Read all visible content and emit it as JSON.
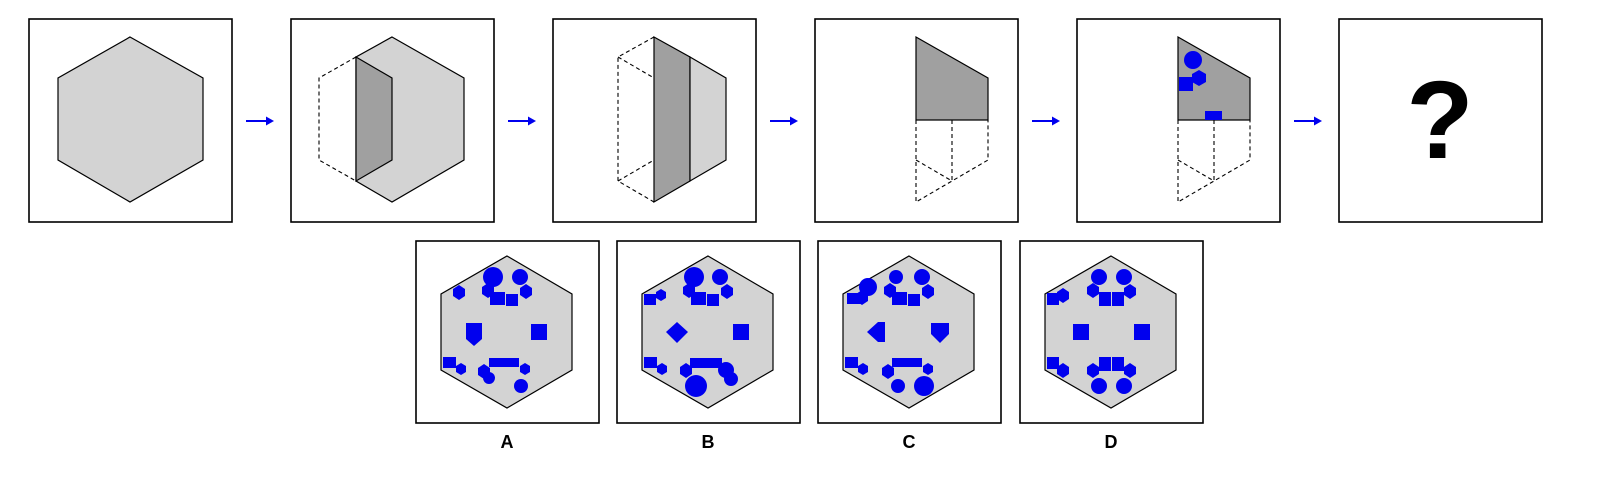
{
  "question_mark": "?",
  "options": [
    "A",
    "B",
    "C",
    "D"
  ],
  "colors": {
    "shape": "#0000ee",
    "light_gray": "#d3d3d3",
    "dark_gray": "#a0a0a0"
  }
}
